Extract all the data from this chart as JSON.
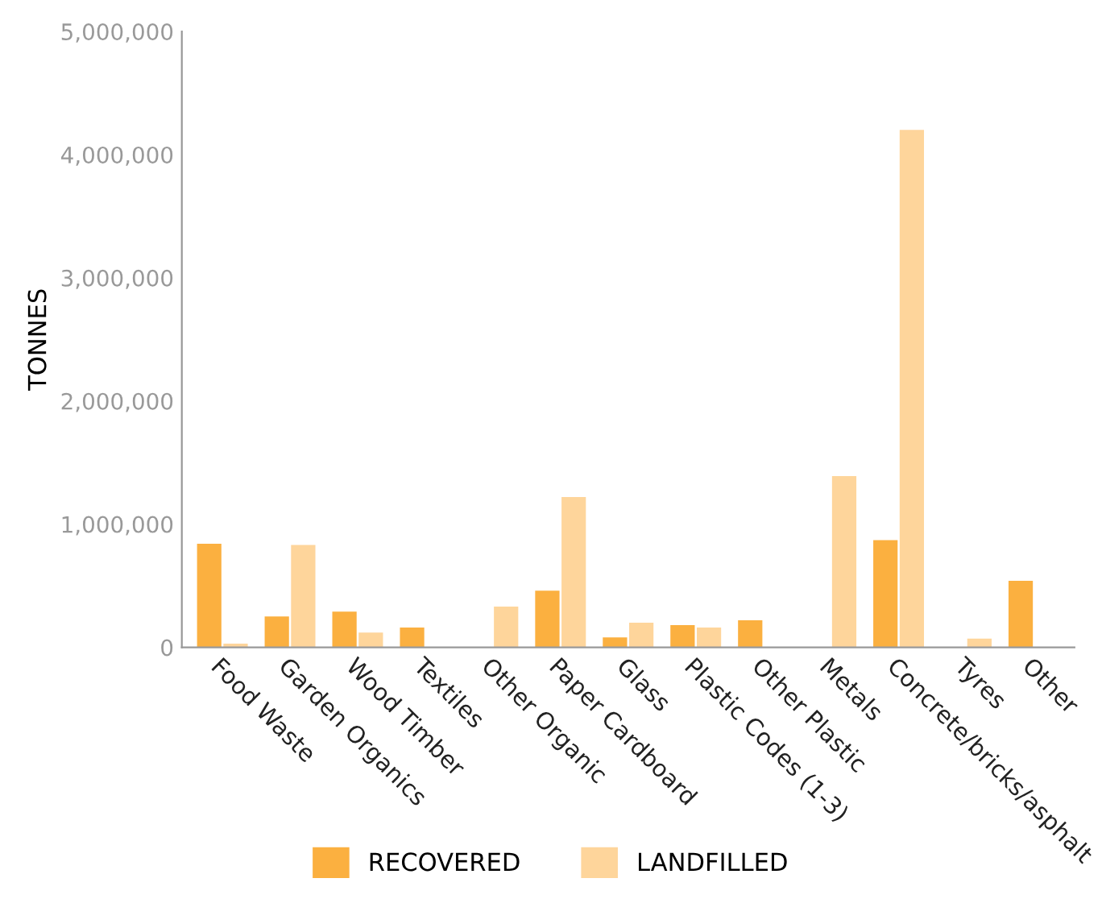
{
  "chart_data": {
    "type": "bar",
    "ylabel": "TONNES",
    "categories": [
      "Food Waste",
      "Garden Organics",
      "Wood Timber",
      "Textiles",
      "Other Organic",
      "Paper Cardboard",
      "Glass",
      "Plastic Codes (1-3)",
      "Other Plastic",
      "Metals",
      "Concrete/bricks/asphalt",
      "Tyres",
      "Other"
    ],
    "series": [
      {
        "name": "RECOVERED",
        "color": "#fbb040",
        "values": [
          840000,
          250000,
          290000,
          160000,
          0,
          460000,
          80000,
          180000,
          220000,
          0,
          870000,
          null,
          540000
        ]
      },
      {
        "name": "LANDFILLED",
        "color": "#fed59b",
        "values": [
          30000,
          830000,
          120000,
          0,
          330000,
          1220000,
          200000,
          160000,
          0,
          1390000,
          4200000,
          70000,
          null
        ]
      }
    ],
    "ylim": [
      0,
      5000000
    ],
    "yticks": [
      {
        "value": 0,
        "label": "0"
      },
      {
        "value": 1000000,
        "label": "1,000,000"
      },
      {
        "value": 2000000,
        "label": "2,000,000"
      },
      {
        "value": 3000000,
        "label": "3,000,000"
      },
      {
        "value": 4000000,
        "label": "4,000,000"
      },
      {
        "value": 5000000,
        "label": "5,000,000"
      }
    ],
    "grid": false,
    "legend": "bottom"
  }
}
